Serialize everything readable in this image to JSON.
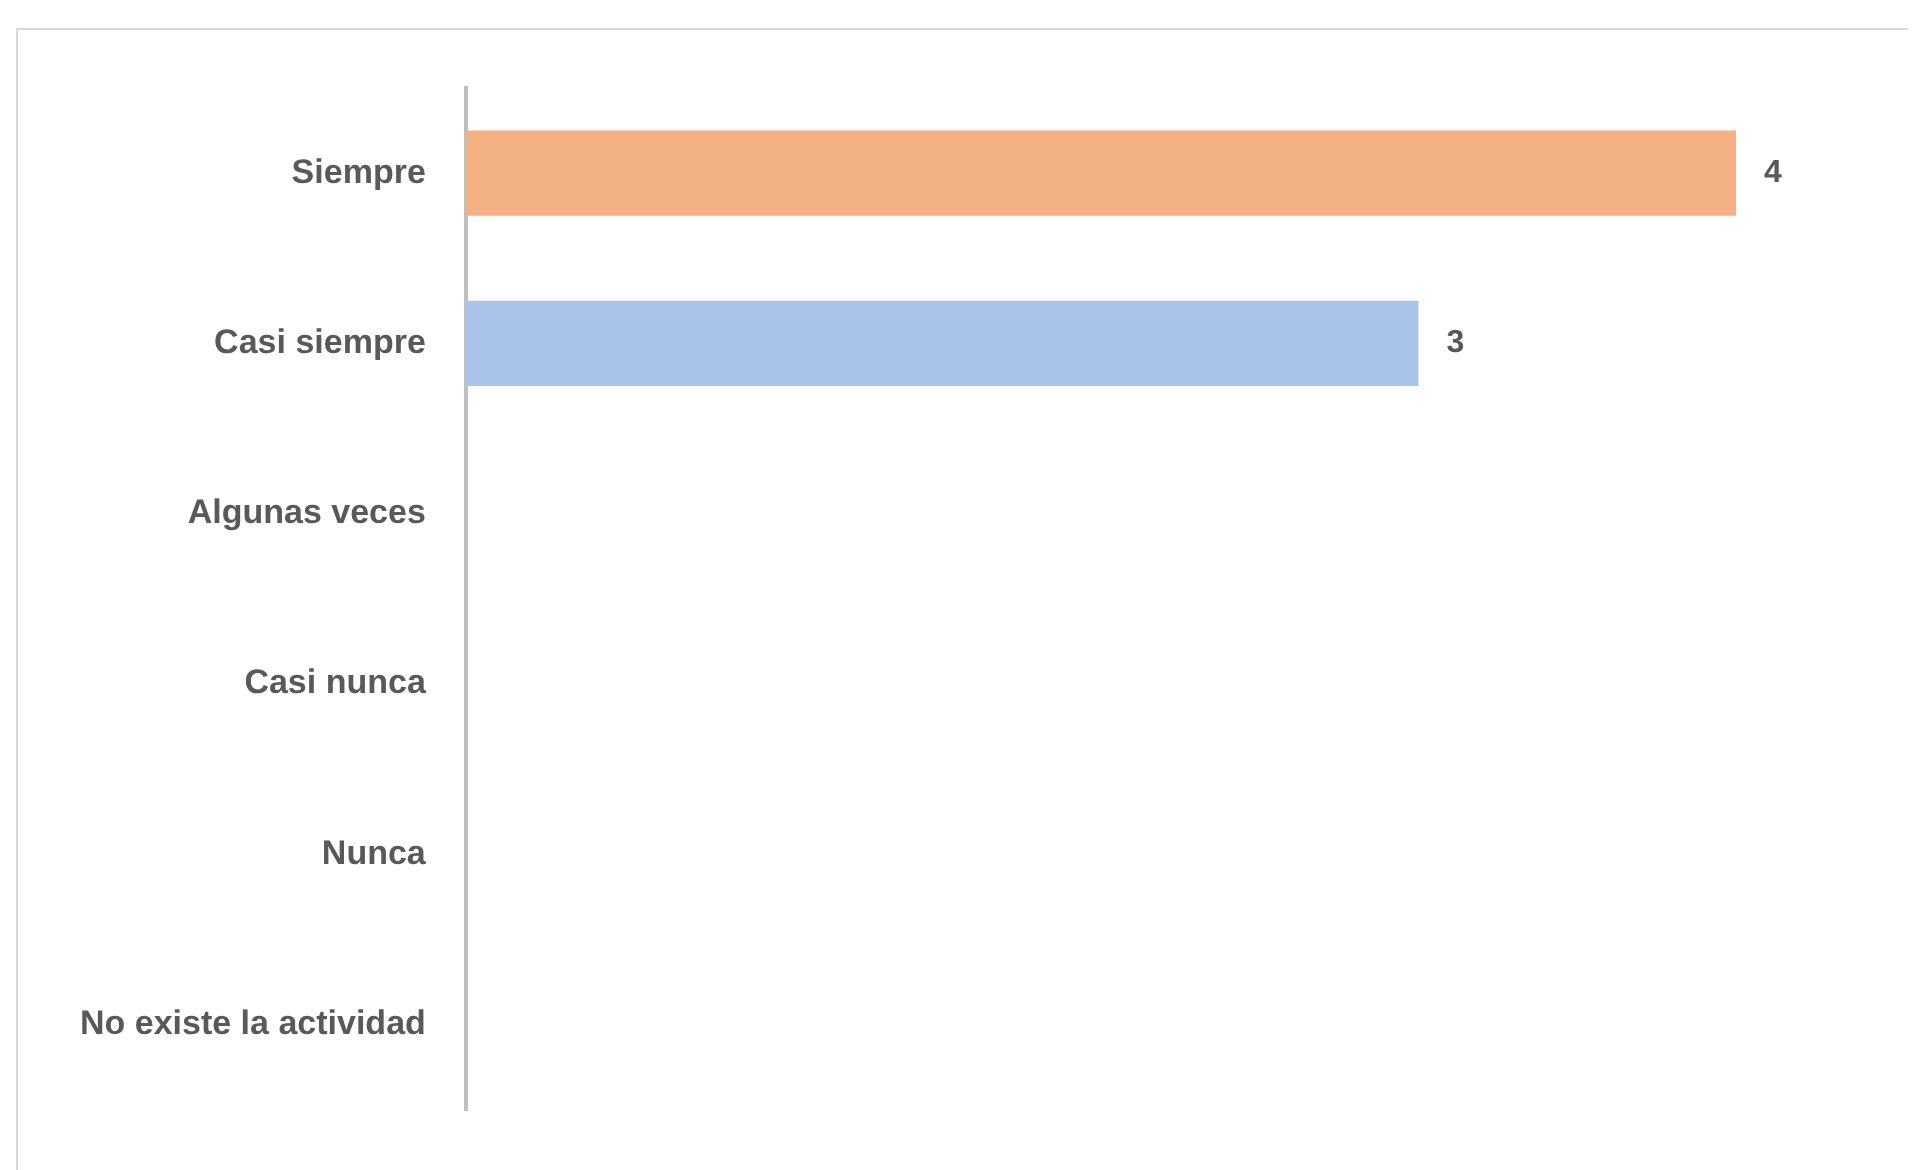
{
  "chart_data": {
    "type": "bar",
    "orientation": "horizontal",
    "categories": [
      "Siempre",
      "Casi siempre",
      "Algunas veces",
      "Casi nunca",
      "Nunca",
      "No existe la actividad"
    ],
    "values": [
      4,
      3,
      null,
      null,
      null,
      null
    ],
    "colors": [
      "#f4b183",
      "#a9c4eb",
      "#a9c4eb",
      "#a9c4eb",
      "#a9c4eb",
      "#a9c4eb"
    ],
    "data_labels": true,
    "legend": false
  }
}
